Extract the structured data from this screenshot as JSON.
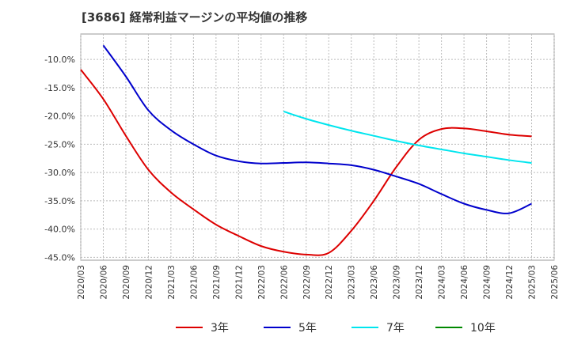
{
  "title": "[3686]  経常利益マージンの平均値の推移",
  "chart_data": {
    "type": "line",
    "ylim": [
      -45.5,
      -5.5
    ],
    "yticks": [
      -10,
      -15,
      -20,
      -25,
      -30,
      -35,
      -40,
      -45
    ],
    "ytick_labels": [
      "-10.0%",
      "-15.0%",
      "-20.0%",
      "-25.0%",
      "-30.0%",
      "-35.0%",
      "-40.0%",
      "-45.0%"
    ],
    "xticks": [
      "2020/03",
      "2020/06",
      "2020/09",
      "2020/12",
      "2021/03",
      "2021/06",
      "2021/09",
      "2021/12",
      "2022/03",
      "2022/06",
      "2022/09",
      "2022/12",
      "2023/03",
      "2023/06",
      "2023/09",
      "2023/12",
      "2024/03",
      "2024/06",
      "2024/09",
      "2024/12",
      "2025/03",
      "2025/06"
    ],
    "grid": true,
    "legend_position": "bottom",
    "series": [
      {
        "name": "3年",
        "color": "#dd0000",
        "x": [
          "2020/03",
          "2020/06",
          "2020/09",
          "2020/12",
          "2021/03",
          "2021/06",
          "2021/09",
          "2021/12",
          "2022/03",
          "2022/06",
          "2022/09",
          "2022/12",
          "2023/03",
          "2023/06",
          "2023/09",
          "2023/12",
          "2024/03",
          "2024/06",
          "2024/09",
          "2024/12",
          "2025/03"
        ],
        "values": [
          -11.8,
          -17.0,
          -23.5,
          -29.5,
          -33.5,
          -36.5,
          -39.2,
          -41.2,
          -43.0,
          -44.0,
          -44.5,
          -44.2,
          -40.3,
          -35.0,
          -29.0,
          -24.2,
          -22.3,
          -22.2,
          -22.7,
          -23.3,
          -23.6
        ]
      },
      {
        "name": "5年",
        "color": "#0000cc",
        "x": [
          "2020/06",
          "2020/09",
          "2020/12",
          "2021/03",
          "2021/06",
          "2021/09",
          "2021/12",
          "2022/03",
          "2022/06",
          "2022/09",
          "2022/12",
          "2023/03",
          "2023/06",
          "2023/09",
          "2023/12",
          "2024/03",
          "2024/06",
          "2024/09",
          "2024/12",
          "2025/03"
        ],
        "values": [
          -7.5,
          -13.0,
          -19.0,
          -22.5,
          -25.0,
          -27.0,
          -28.0,
          -28.4,
          -28.3,
          -28.2,
          -28.4,
          -28.7,
          -29.5,
          -30.7,
          -32.0,
          -33.8,
          -35.5,
          -36.6,
          -37.2,
          -35.5
        ]
      },
      {
        "name": "7年",
        "color": "#00e5ee",
        "x": [
          "2022/06",
          "2022/09",
          "2022/12",
          "2023/03",
          "2023/06",
          "2023/09",
          "2023/12",
          "2024/03",
          "2024/06",
          "2024/09",
          "2024/12",
          "2025/03"
        ],
        "values": [
          -19.2,
          -20.5,
          -21.6,
          -22.6,
          -23.5,
          -24.4,
          -25.2,
          -25.9,
          -26.6,
          -27.2,
          -27.8,
          -28.3
        ]
      },
      {
        "name": "10年",
        "color": "#008800",
        "x": [],
        "values": []
      }
    ]
  }
}
